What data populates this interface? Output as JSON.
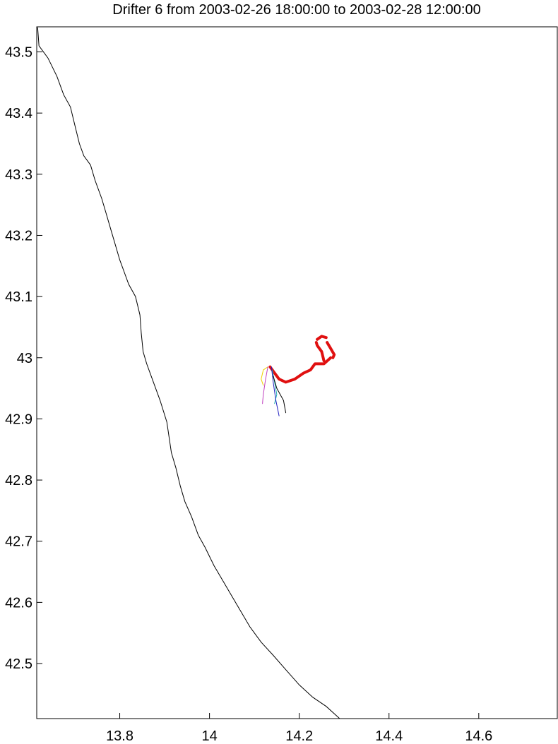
{
  "figure": {
    "title": "Drifter 6 from 2003-02-26 18:00:00 to 2003-02-28 12:00:00"
  },
  "chart_data": {
    "type": "line",
    "title": "Drifter 6 from 2003-02-26 18:00:00 to 2003-02-28 12:00:00",
    "xlabel": "",
    "ylabel": "",
    "xlim": [
      13.615,
      14.775
    ],
    "ylim": [
      42.41,
      43.541
    ],
    "grid": false,
    "x_ticks": [
      "13.8",
      "14",
      "14.2",
      "14.4",
      "14.6"
    ],
    "x_tick_values": [
      13.8,
      14.0,
      14.2,
      14.4,
      14.6
    ],
    "y_ticks": [
      "42.5",
      "42.6",
      "42.7",
      "42.8",
      "42.9",
      "43",
      "43.1",
      "43.2",
      "43.3",
      "43.4",
      "43.5"
    ],
    "y_tick_values": [
      42.5,
      42.6,
      42.7,
      42.8,
      42.9,
      43.0,
      43.1,
      43.2,
      43.3,
      43.4,
      43.5
    ],
    "coastline": {
      "color": "#000000",
      "points": [
        [
          13.617,
          43.54
        ],
        [
          13.62,
          43.51
        ],
        [
          13.64,
          43.49
        ],
        [
          13.66,
          43.46
        ],
        [
          13.675,
          43.43
        ],
        [
          13.69,
          43.41
        ],
        [
          13.7,
          43.38
        ],
        [
          13.71,
          43.35
        ],
        [
          13.72,
          43.33
        ],
        [
          13.735,
          43.315
        ],
        [
          13.745,
          43.29
        ],
        [
          13.76,
          43.26
        ],
        [
          13.77,
          43.235
        ],
        [
          13.78,
          43.21
        ],
        [
          13.79,
          43.185
        ],
        [
          13.8,
          43.16
        ],
        [
          13.81,
          43.14
        ],
        [
          13.82,
          43.12
        ],
        [
          13.835,
          43.1
        ],
        [
          13.845,
          43.07
        ],
        [
          13.848,
          43.04
        ],
        [
          13.852,
          43.01
        ],
        [
          13.86,
          42.99
        ],
        [
          13.875,
          42.96
        ],
        [
          13.89,
          42.93
        ],
        [
          13.905,
          42.895
        ],
        [
          13.91,
          42.87
        ],
        [
          13.915,
          42.845
        ],
        [
          13.925,
          42.82
        ],
        [
          13.935,
          42.79
        ],
        [
          13.945,
          42.765
        ],
        [
          13.96,
          42.74
        ],
        [
          13.975,
          42.71
        ],
        [
          13.99,
          42.69
        ],
        [
          14.01,
          42.66
        ],
        [
          14.03,
          42.635
        ],
        [
          14.05,
          42.61
        ],
        [
          14.07,
          42.585
        ],
        [
          14.09,
          42.56
        ],
        [
          14.115,
          42.535
        ],
        [
          14.14,
          42.515
        ],
        [
          14.17,
          42.49
        ],
        [
          14.2,
          42.465
        ],
        [
          14.23,
          42.445
        ],
        [
          14.26,
          42.43
        ],
        [
          14.29,
          42.41
        ],
        [
          14.31,
          42.41
        ]
      ]
    },
    "series": [
      {
        "color": "#e01010",
        "points": [
          [
            14.135,
            42.985
          ],
          [
            14.145,
            42.975
          ],
          [
            14.155,
            42.965
          ],
          [
            14.17,
            42.96
          ],
          [
            14.19,
            42.965
          ],
          [
            14.21,
            42.975
          ],
          [
            14.225,
            42.98
          ],
          [
            14.235,
            42.99
          ],
          [
            14.255,
            42.99
          ],
          [
            14.27,
            43.0
          ]
        ]
      },
      {
        "color": "#e01010",
        "points": [
          [
            14.255,
            42.995
          ],
          [
            14.25,
            43.01
          ],
          [
            14.24,
            43.02
          ],
          [
            14.238,
            43.025
          ]
        ]
      },
      {
        "color": "#e01010",
        "points": [
          [
            14.262,
            43.025
          ],
          [
            14.27,
            43.015
          ],
          [
            14.278,
            43.005
          ],
          [
            14.275,
            43.0
          ]
        ]
      },
      {
        "color": "#e01010",
        "points": [
          [
            14.24,
            43.03
          ],
          [
            14.25,
            43.035
          ],
          [
            14.26,
            43.033
          ]
        ]
      },
      {
        "color": "#f0d000",
        "points": [
          [
            14.12,
            42.955
          ],
          [
            14.115,
            42.965
          ],
          [
            14.12,
            42.98
          ],
          [
            14.13,
            42.985
          ]
        ]
      },
      {
        "color": "#c040c0",
        "points": [
          [
            14.13,
            42.985
          ],
          [
            14.125,
            42.965
          ],
          [
            14.12,
            42.94
          ],
          [
            14.118,
            42.925
          ]
        ]
      },
      {
        "color": "#20b0b0",
        "points": [
          [
            14.14,
            42.98
          ],
          [
            14.145,
            42.96
          ],
          [
            14.15,
            42.94
          ],
          [
            14.145,
            42.925
          ]
        ]
      },
      {
        "color": "#2020c0",
        "points": [
          [
            14.138,
            42.985
          ],
          [
            14.142,
            42.96
          ],
          [
            14.148,
            42.93
          ],
          [
            14.155,
            42.905
          ]
        ]
      },
      {
        "color": "#000000",
        "points": [
          [
            14.142,
            42.97
          ],
          [
            14.15,
            42.95
          ],
          [
            14.165,
            42.93
          ],
          [
            14.17,
            42.91
          ]
        ]
      }
    ]
  }
}
